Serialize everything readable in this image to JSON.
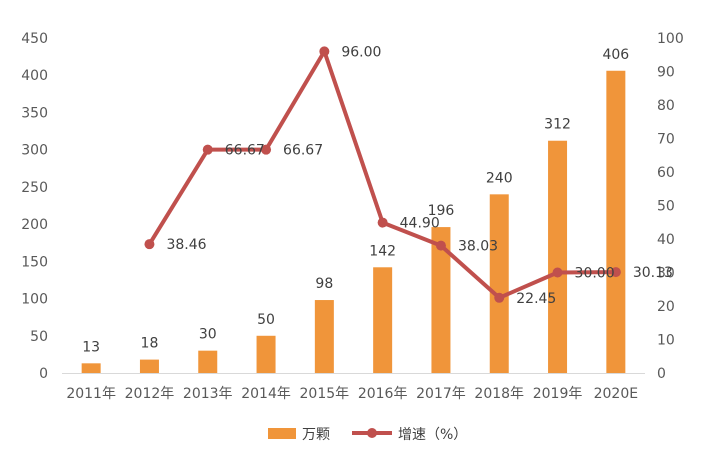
{
  "chart_data": {
    "type": "bar",
    "categories": [
      "2011年",
      "2012年",
      "2013年",
      "2014年",
      "2015年",
      "2016年",
      "2017年",
      "2018年",
      "2019年",
      "2020E"
    ],
    "series": [
      {
        "name": "万颗",
        "type": "bar",
        "axis": "left",
        "color": "#F0953A",
        "values": [
          13,
          18,
          30,
          50,
          98,
          142,
          196,
          240,
          312,
          406
        ],
        "labels": [
          "13",
          "18",
          "30",
          "50",
          "98",
          "142",
          "196",
          "240",
          "312",
          "406"
        ]
      },
      {
        "name": "增速（%）",
        "type": "line",
        "axis": "right",
        "color": "#C0504D",
        "values": [
          null,
          38.46,
          66.67,
          66.67,
          96.0,
          44.9,
          38.03,
          22.45,
          30.0,
          30.13
        ],
        "labels": [
          "",
          "38.46",
          "66.67",
          "66.67",
          "96.00",
          "44.90",
          "38.03",
          "22.45",
          "30.00",
          "30.13"
        ]
      }
    ],
    "y_left": {
      "min": 0,
      "max": 450,
      "ticks": [
        "0",
        "50",
        "100",
        "150",
        "200",
        "250",
        "300",
        "350",
        "400",
        "450"
      ]
    },
    "y_right": {
      "min": 0,
      "max": 100,
      "ticks": [
        "0",
        "10",
        "20",
        "30",
        "40",
        "50",
        "60",
        "70",
        "80",
        "90",
        "100"
      ]
    },
    "grid": false,
    "legend": {
      "position": "bottom",
      "items": [
        "万颗",
        "增速（%）"
      ]
    }
  }
}
